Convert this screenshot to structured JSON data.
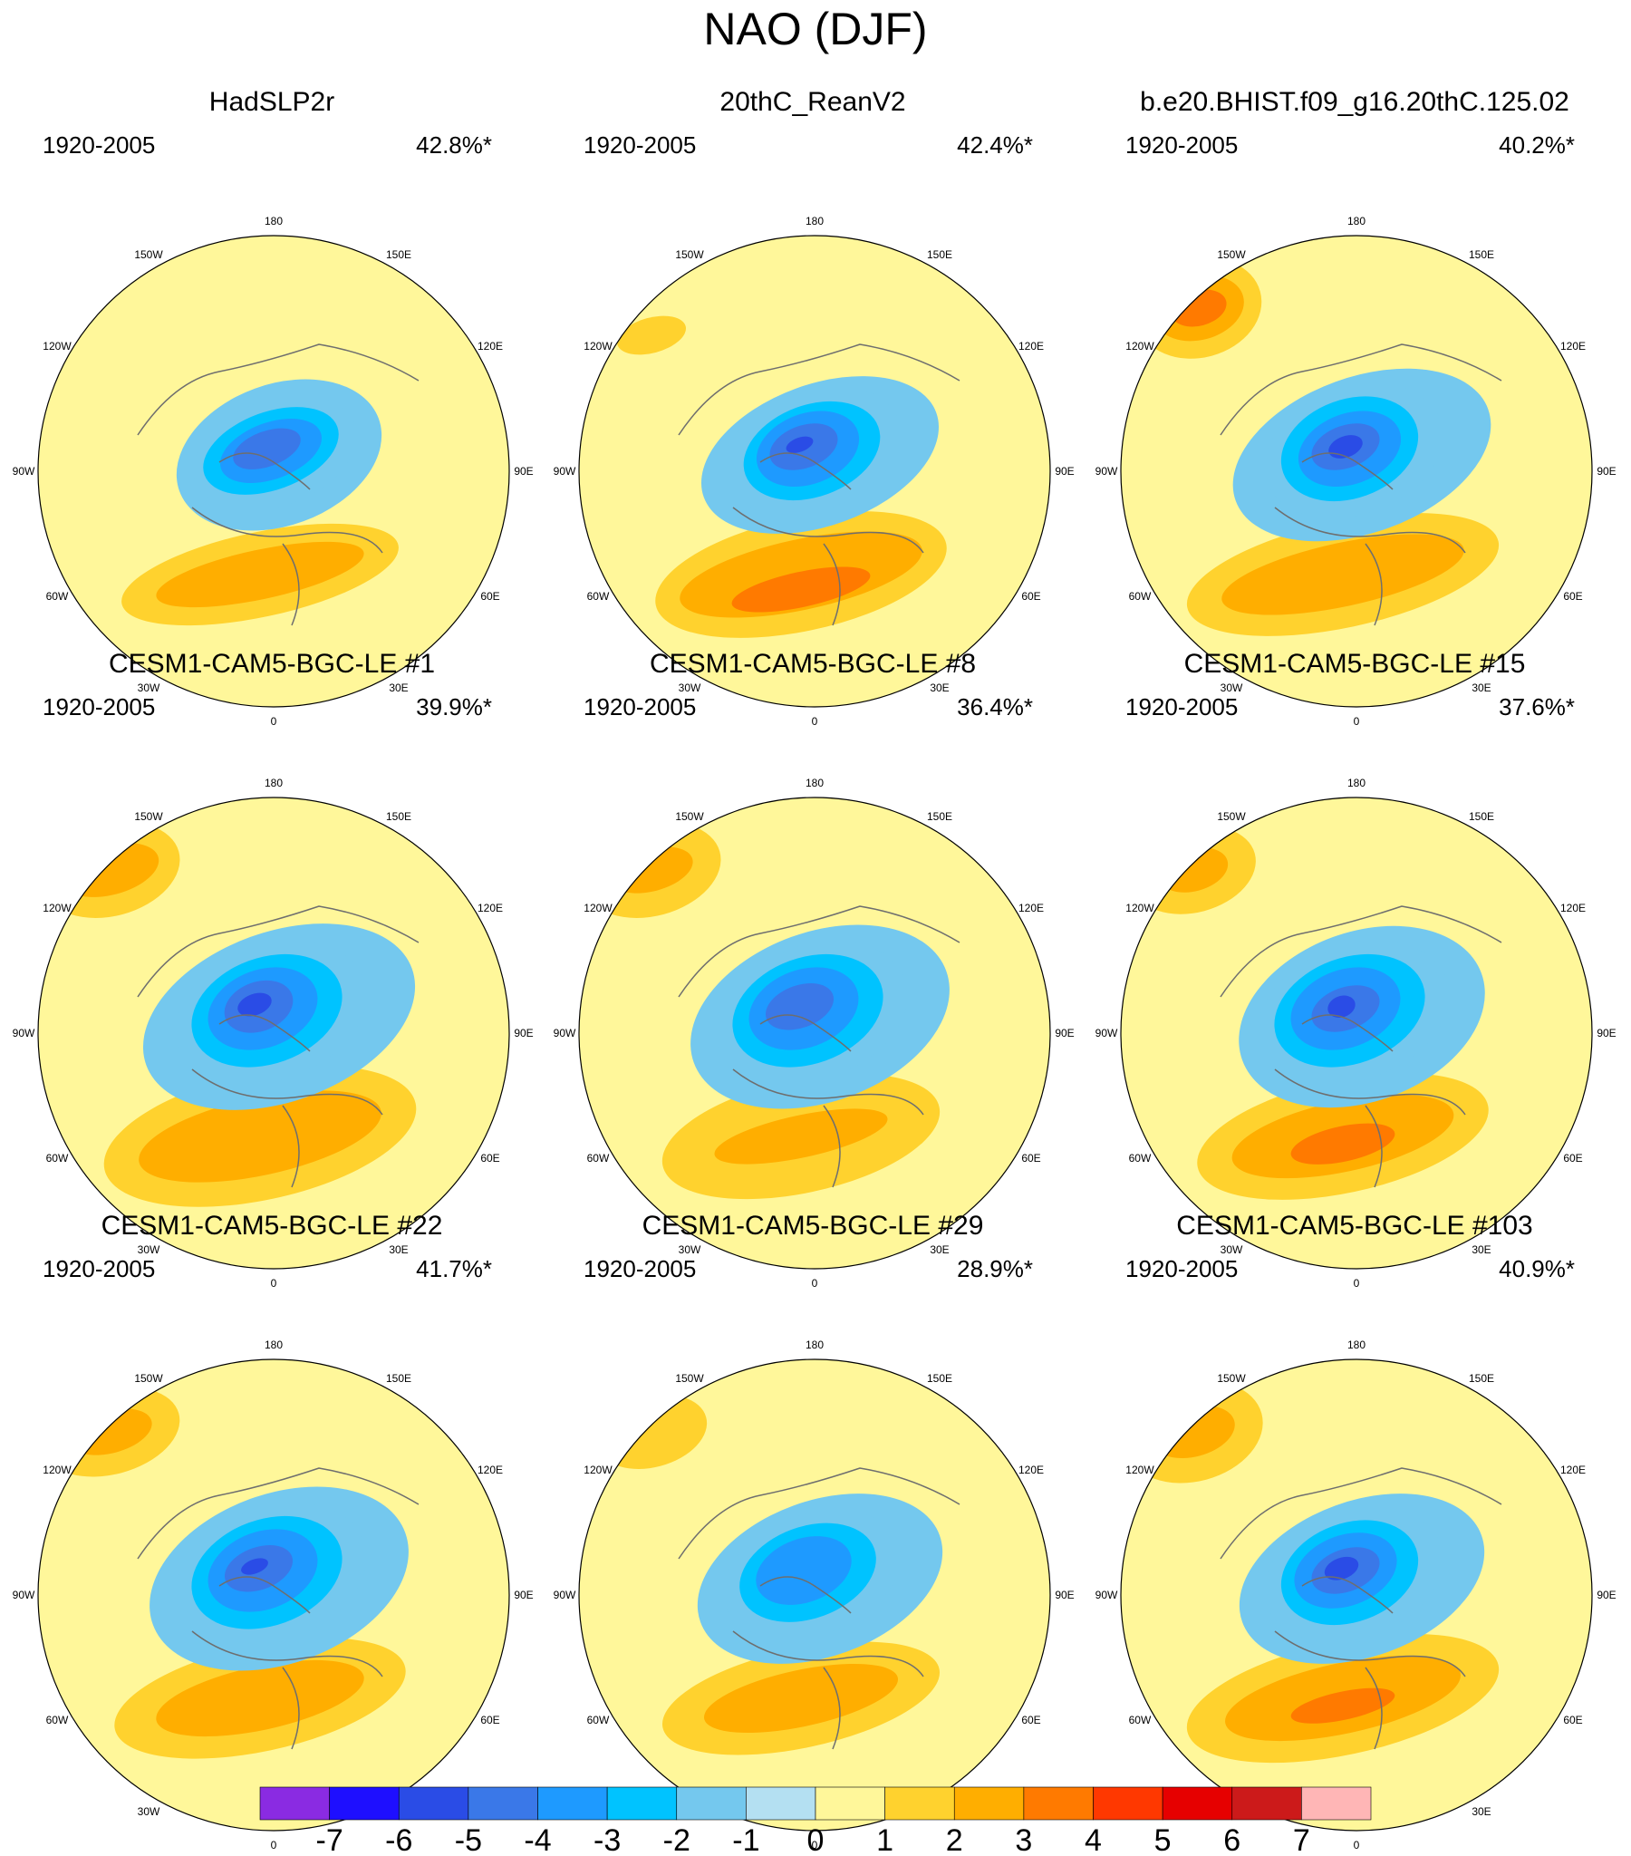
{
  "chart_data": {
    "type": "heatmap",
    "title": "NAO (DJF)",
    "projection": "north-polar-stereographic",
    "longitude_labels": [
      "180",
      "150E",
      "120E",
      "90E",
      "60E",
      "30E",
      "0",
      "30W",
      "60W",
      "90W",
      "120W",
      "150W"
    ],
    "colorbar": {
      "levels": [
        -7,
        -6,
        -5,
        -4,
        -3,
        -2,
        -1,
        0,
        1,
        2,
        3,
        4,
        5,
        6,
        7
      ],
      "labels": [
        "-7",
        "-6",
        "-5",
        "-4",
        "-3",
        "-2",
        "-1",
        "0",
        "1",
        "2",
        "3",
        "4",
        "5",
        "6",
        "7"
      ],
      "colors": [
        "#8a2be2",
        "#1e0fff",
        "#2a4ce6",
        "#3a78e8",
        "#1e9aff",
        "#00c3ff",
        "#74c8ee",
        "#b4e0f2",
        "#fff79a",
        "#ffd22e",
        "#ffae00",
        "#ff7a00",
        "#ff3800",
        "#e60000",
        "#cc1a1a",
        "#ffb6b6"
      ]
    },
    "panels": [
      {
        "title": "HadSLP2r",
        "period": "1920-2005",
        "variance": "42.8%*",
        "lows": [
          [
            0,
            0,
            3,
            2
          ],
          [
            -1,
            -0.5,
            2.4,
            1.5
          ],
          [
            -2,
            -1,
            2,
            1.1
          ],
          [
            -3,
            -1,
            1.5,
            0.8
          ],
          [
            -4,
            -1.5,
            1,
            0.5
          ]
        ],
        "highs": [
          [
            1,
            6,
            4,
            1.2
          ],
          [
            2,
            6,
            3,
            0.7
          ]
        ],
        "pac": []
      },
      {
        "title": "20thC_ReanV2",
        "period": "1920-2005",
        "variance": "42.4%*",
        "lows": [
          [
            0,
            0,
            3.5,
            2
          ],
          [
            -1,
            -1,
            2.6,
            1.7
          ],
          [
            -2,
            -1,
            2,
            1.3
          ],
          [
            -3,
            -1.5,
            1.5,
            1
          ],
          [
            -4,
            -2,
            1,
            0.6
          ],
          [
            -5,
            -2.5,
            0.4,
            0.2
          ]
        ],
        "highs": [
          [
            1,
            6,
            4.2,
            1.6
          ],
          [
            2,
            6,
            3.5,
            1
          ],
          [
            3,
            7,
            2,
            0.5
          ]
        ],
        "pac": [
          [
            1,
            -6,
            -5,
            1,
            0.5
          ]
        ]
      },
      {
        "title": "b.e20.BHIST.f09_g16.20thC.125.02",
        "period": "1920-2005",
        "variance": "40.2%*",
        "lows": [
          [
            0,
            0,
            3.8,
            2.2
          ],
          [
            -1,
            -1,
            2.6,
            1.8
          ],
          [
            -2,
            -1.5,
            2,
            1.4
          ],
          [
            -3,
            -1.5,
            1.5,
            1
          ],
          [
            -4,
            -2,
            1,
            0.6
          ],
          [
            -5,
            -2,
            0.5,
            0.3
          ]
        ],
        "highs": [
          [
            1,
            6,
            4.5,
            1.5
          ],
          [
            2,
            6,
            3.5,
            0.9
          ]
        ],
        "pac": [
          [
            1,
            -5.8,
            -6,
            1.8,
            1.4
          ],
          [
            2,
            -5.8,
            -6,
            1.3,
            0.9
          ],
          [
            3,
            -5.8,
            -6,
            0.8,
            0.5
          ]
        ]
      },
      {
        "title": "CESM1-CAM5-BGC-LE #1",
        "period": "1920-2005",
        "variance": "39.9%*",
        "lows": [
          [
            0,
            0,
            4,
            2.4
          ],
          [
            -1,
            -1,
            2.8,
            1.9
          ],
          [
            -2,
            -1.5,
            2.2,
            1.5
          ],
          [
            -3,
            -2,
            1.6,
            1.1
          ],
          [
            -4,
            -2.5,
            1,
            0.7
          ],
          [
            -5,
            -3,
            0.5,
            0.3
          ]
        ],
        "highs": [
          [
            1,
            6,
            4.5,
            1.8
          ],
          [
            2,
            6,
            3.5,
            1.1
          ]
        ],
        "pac": [
          [
            1,
            -6,
            -6,
            2,
            1.3
          ],
          [
            2,
            -6,
            -6,
            1.4,
            0.7
          ]
        ]
      },
      {
        "title": "CESM1-CAM5-BGC-LE #8",
        "period": "1920-2005",
        "variance": "36.4%*",
        "lows": [
          [
            0,
            0,
            3.8,
            2.4
          ],
          [
            -1,
            -1,
            2.8,
            1.9
          ],
          [
            -2,
            -1.5,
            2.2,
            1.5
          ],
          [
            -3,
            -2,
            1.6,
            1.1
          ],
          [
            -4,
            -2.5,
            1,
            0.6
          ]
        ],
        "highs": [
          [
            1,
            6,
            4,
            1.6
          ],
          [
            2,
            6,
            2.5,
            0.6
          ]
        ],
        "pac": [
          [
            1,
            -6,
            -6,
            2,
            1.3
          ],
          [
            2,
            -6,
            -6,
            1.2,
            0.6
          ]
        ]
      },
      {
        "title": "CESM1-CAM5-BGC-LE #15",
        "period": "1920-2005",
        "variance": "37.6%*",
        "lows": [
          [
            0,
            0,
            3.6,
            2.4
          ],
          [
            -1,
            -1,
            2.8,
            1.9
          ],
          [
            -2,
            -1.5,
            2.2,
            1.5
          ],
          [
            -3,
            -2,
            1.6,
            1.1
          ],
          [
            -4,
            -2,
            1,
            0.6
          ],
          [
            -5,
            -2.5,
            0.4,
            0.3
          ]
        ],
        "highs": [
          [
            1,
            6,
            4.2,
            1.6
          ],
          [
            2,
            6,
            3.2,
            1
          ],
          [
            3,
            6.5,
            1.5,
            0.5
          ]
        ],
        "pac": [
          [
            1,
            -6,
            -6,
            1.8,
            1.2
          ],
          [
            2,
            -6,
            -6,
            1,
            0.6
          ]
        ]
      },
      {
        "title": "CESM1-CAM5-BGC-LE #22",
        "period": "1920-2005",
        "variance": "41.7%*",
        "lows": [
          [
            0,
            0,
            3.8,
            2.4
          ],
          [
            -1,
            -1,
            2.8,
            1.9
          ],
          [
            -2,
            -1.5,
            2.2,
            1.5
          ],
          [
            -3,
            -2,
            1.6,
            1.1
          ],
          [
            -4,
            -2.5,
            1,
            0.6
          ],
          [
            -5,
            -3,
            0.4,
            0.2
          ]
        ],
        "highs": [
          [
            1,
            6,
            4.2,
            1.5
          ],
          [
            2,
            6,
            3,
            0.9
          ]
        ],
        "pac": [
          [
            1,
            -6,
            -6,
            2,
            1.2
          ],
          [
            2,
            -6,
            -6,
            1.2,
            0.6
          ]
        ]
      },
      {
        "title": "CESM1-CAM5-BGC-LE #29",
        "period": "1920-2005",
        "variance": "28.9%*",
        "lows": [
          [
            0,
            0,
            3.6,
            2.2
          ],
          [
            -1,
            -1,
            2.6,
            1.7
          ],
          [
            -2,
            -1.5,
            2,
            1.3
          ],
          [
            -3,
            -2,
            1.4,
            0.9
          ]
        ],
        "highs": [
          [
            1,
            6,
            4,
            1.4
          ],
          [
            2,
            6,
            2.8,
            0.8
          ]
        ],
        "pac": [
          [
            1,
            -6,
            -6,
            1.6,
            1
          ]
        ]
      },
      {
        "title": "CESM1-CAM5-BGC-LE #103",
        "period": "1920-2005",
        "variance": "40.9%*",
        "lows": [
          [
            0,
            0,
            3.6,
            2.2
          ],
          [
            -1,
            -1,
            2.6,
            1.8
          ],
          [
            -2,
            -1.5,
            2,
            1.4
          ],
          [
            -3,
            -2,
            1.5,
            1
          ],
          [
            -4,
            -2,
            1,
            0.6
          ],
          [
            -5,
            -2.5,
            0.5,
            0.3
          ]
        ],
        "highs": [
          [
            1,
            6,
            4.5,
            1.6
          ],
          [
            2,
            6,
            3.4,
            1
          ],
          [
            3,
            6.5,
            1.5,
            0.4
          ]
        ],
        "pac": [
          [
            1,
            -6,
            -6,
            2,
            1.4
          ],
          [
            2,
            -6,
            -6,
            1.2,
            0.7
          ]
        ]
      }
    ]
  }
}
